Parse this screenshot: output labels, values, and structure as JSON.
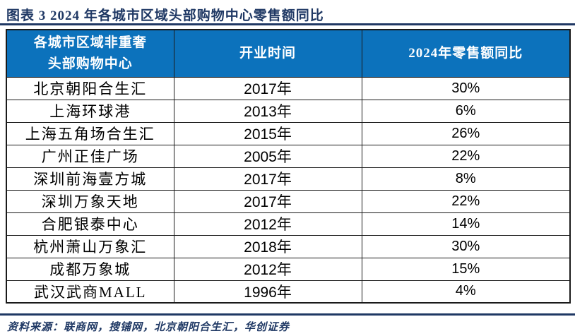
{
  "title": "图表 3  2024 年各城市区域头部购物中心零售额同比",
  "table": {
    "header": {
      "col1_line1": "各城市区域非重奢",
      "col1_line2": "头部购物中心",
      "col2": "开业时间",
      "col3": "2024年零售额同比"
    },
    "rows": [
      {
        "name": "北京朝阳合生汇",
        "open": "2017年",
        "yoy": "30%"
      },
      {
        "name": "上海环球港",
        "open": "2013年",
        "yoy": "6%"
      },
      {
        "name": "上海五角场合生汇",
        "open": "2015年",
        "yoy": "26%"
      },
      {
        "name": "广州正佳广场",
        "open": "2005年",
        "yoy": "22%"
      },
      {
        "name": "深圳前海壹方城",
        "open": "2017年",
        "yoy": "8%"
      },
      {
        "name": "深圳万象天地",
        "open": "2017年",
        "yoy": "22%"
      },
      {
        "name": "合肥银泰中心",
        "open": "2012年",
        "yoy": "14%"
      },
      {
        "name": "杭州萧山万象汇",
        "open": "2018年",
        "yoy": "30%"
      },
      {
        "name": "成都万象城",
        "open": "2012年",
        "yoy": "15%"
      },
      {
        "name": "武汉武商MALL",
        "open": "1996年",
        "yoy": "4%"
      }
    ]
  },
  "source": "资料来源：联商网，搜铺网，北京朝阳合生汇，华创证券",
  "colors": {
    "header_bg": "#0C72BC",
    "accent_navy": "#1F3864",
    "border": "#1A1A1A",
    "body_text": "#000000",
    "header_text": "#FFFFFF"
  },
  "chart_data": {
    "type": "table",
    "title": "图表 3  2024 年各城市区域头部购物中心零售额同比",
    "columns": [
      "各城市区域非重奢头部购物中心",
      "开业时间",
      "2024年零售额同比"
    ],
    "rows": [
      [
        "北京朝阳合生汇",
        "2017年",
        "30%"
      ],
      [
        "上海环球港",
        "2013年",
        "6%"
      ],
      [
        "上海五角场合生汇",
        "2015年",
        "26%"
      ],
      [
        "广州正佳广场",
        "2005年",
        "22%"
      ],
      [
        "深圳前海壹方城",
        "2017年",
        "8%"
      ],
      [
        "深圳万象天地",
        "2017年",
        "22%"
      ],
      [
        "合肥银泰中心",
        "2012年",
        "14%"
      ],
      [
        "杭州萧山万象汇",
        "2018年",
        "30%"
      ],
      [
        "成都万象城",
        "2012年",
        "15%"
      ],
      [
        "武汉武商MALL",
        "1996年",
        "4%"
      ]
    ],
    "open_years": [
      2017,
      2013,
      2015,
      2005,
      2017,
      2017,
      2012,
      2018,
      2012,
      1996
    ],
    "yoy_values_pct": [
      30,
      6,
      26,
      22,
      8,
      22,
      14,
      30,
      15,
      4
    ],
    "source": "资料来源：联商网，搜铺网，北京朝阳合生汇，华创证券"
  }
}
